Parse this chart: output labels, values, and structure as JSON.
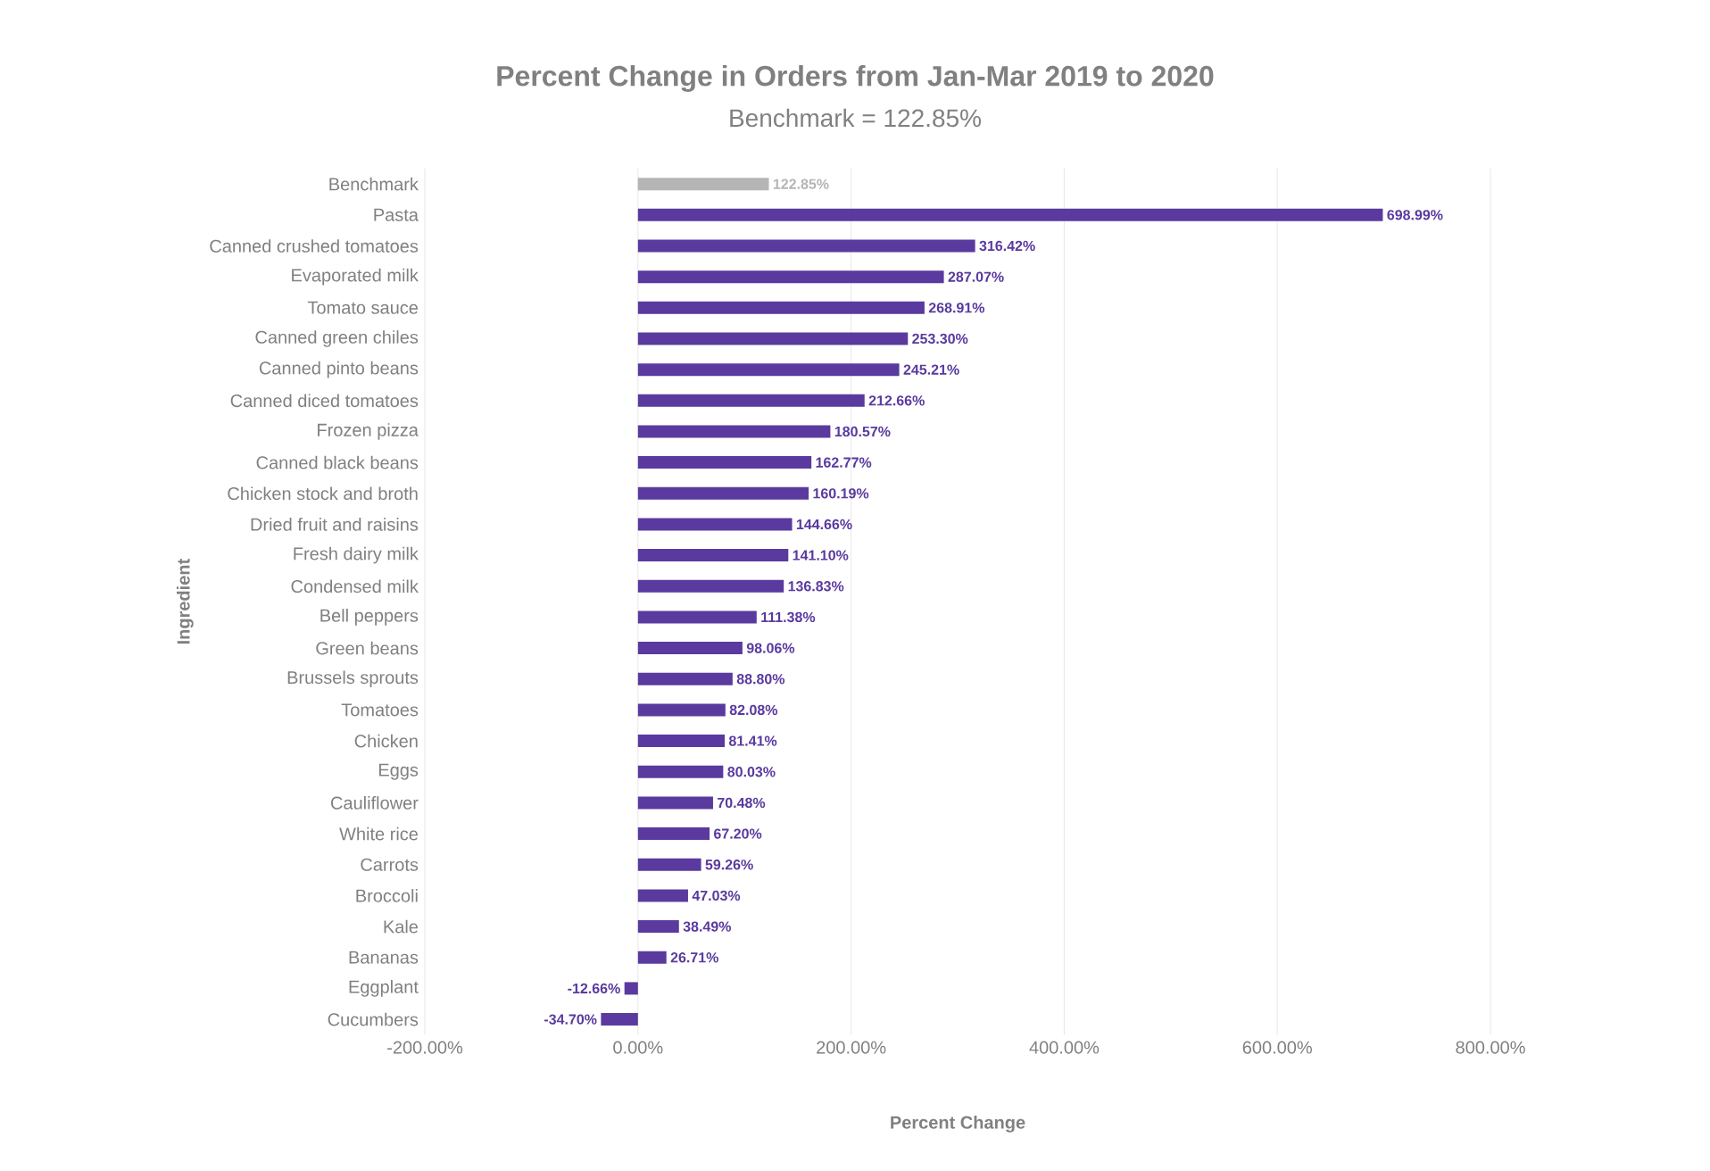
{
  "chart_data": {
    "type": "bar",
    "orientation": "horizontal",
    "title": "Percent Change in Orders from Jan-Mar 2019 to 2020",
    "subtitle": "Benchmark = 122.85%",
    "xlabel": "Percent Change",
    "ylabel": "Ingredient",
    "categories": [
      "Benchmark",
      "Pasta",
      "Canned crushed tomatoes",
      "Evaporated milk",
      "Tomato sauce",
      "Canned green chiles",
      "Canned pinto beans",
      "Canned diced tomatoes",
      "Frozen pizza",
      "Canned black beans",
      "Chicken stock and broth",
      "Dried fruit and raisins",
      "Fresh dairy milk",
      "Condensed milk",
      "Bell peppers",
      "Green beans",
      "Brussels sprouts",
      "Tomatoes",
      "Chicken",
      "Eggs",
      "Cauliflower",
      "White rice",
      "Carrots",
      "Broccoli",
      "Kale",
      "Bananas",
      "Eggplant",
      "Cucumbers"
    ],
    "values": [
      122.85,
      698.99,
      316.42,
      287.07,
      268.91,
      253.3,
      245.21,
      212.66,
      180.57,
      162.77,
      160.19,
      144.66,
      141.1,
      136.83,
      111.38,
      98.06,
      88.8,
      82.08,
      81.41,
      80.03,
      70.48,
      67.2,
      59.26,
      47.03,
      38.49,
      26.71,
      -12.66,
      -34.7
    ],
    "value_labels": [
      "122.85%",
      "698.99%",
      "316.42%",
      "287.07%",
      "268.91%",
      "253.30%",
      "245.21%",
      "212.66%",
      "180.57%",
      "162.77%",
      "160.19%",
      "144.66%",
      "141.10%",
      "136.83%",
      "111.38%",
      "98.06%",
      "88.80%",
      "82.08%",
      "81.41%",
      "80.03%",
      "70.48%",
      "67.20%",
      "59.26%",
      "47.03%",
      "38.49%",
      "26.71%",
      "-12.66%",
      "-34.70%"
    ],
    "colors": [
      "#b5b5b5",
      "#5a3a9e",
      "#5a3a9e",
      "#5a3a9e",
      "#5a3a9e",
      "#5a3a9e",
      "#5a3a9e",
      "#5a3a9e",
      "#5a3a9e",
      "#5a3a9e",
      "#5a3a9e",
      "#5a3a9e",
      "#5a3a9e",
      "#5a3a9e",
      "#5a3a9e",
      "#5a3a9e",
      "#5a3a9e",
      "#5a3a9e",
      "#5a3a9e",
      "#5a3a9e",
      "#5a3a9e",
      "#5a3a9e",
      "#5a3a9e",
      "#5a3a9e",
      "#5a3a9e",
      "#5a3a9e",
      "#5a3a9e",
      "#5a3a9e"
    ],
    "xlim": [
      -200,
      800
    ],
    "xticks": [
      {
        "value": -200,
        "label": "-200.00%"
      },
      {
        "value": 0,
        "label": "0.00%"
      },
      {
        "value": 200,
        "label": "200.00%"
      },
      {
        "value": 400,
        "label": "400.00%"
      },
      {
        "value": 600,
        "label": "600.00%"
      },
      {
        "value": 800,
        "label": "800.00%"
      }
    ],
    "grid": "x"
  }
}
